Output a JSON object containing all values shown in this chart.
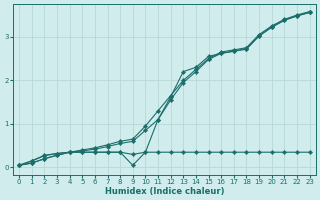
{
  "xlabel": "Humidex (Indice chaleur)",
  "bg_color": "#d0ecec",
  "grid_color": "#b8d8d8",
  "line_color": "#1a6e6a",
  "xlim": [
    -0.5,
    23.5
  ],
  "ylim": [
    -0.18,
    3.75
  ],
  "xticks": [
    0,
    1,
    2,
    3,
    4,
    5,
    6,
    7,
    8,
    9,
    10,
    11,
    12,
    13,
    14,
    15,
    16,
    17,
    18,
    19,
    20,
    21,
    22,
    23
  ],
  "yticks": [
    0,
    1,
    2,
    3
  ],
  "series": [
    {
      "x": [
        0,
        1,
        2,
        3,
        4,
        5,
        6,
        7,
        8,
        9,
        10,
        11,
        12,
        13,
        14,
        15,
        16,
        17,
        18,
        19,
        20,
        21,
        22,
        23
      ],
      "y": [
        0.05,
        0.1,
        0.2,
        0.28,
        0.35,
        0.4,
        0.45,
        0.52,
        0.6,
        0.65,
        0.95,
        1.3,
        1.65,
        2.0,
        2.25,
        2.5,
        2.65,
        2.7,
        2.75,
        3.05,
        3.25,
        3.4,
        3.5,
        3.58
      ]
    },
    {
      "x": [
        0,
        1,
        2,
        3,
        4,
        5,
        6,
        7,
        8,
        9,
        10,
        11,
        12,
        13,
        14,
        15,
        16,
        17,
        18,
        19,
        20,
        21,
        22,
        23
      ],
      "y": [
        0.05,
        0.1,
        0.2,
        0.28,
        0.35,
        0.38,
        0.42,
        0.48,
        0.55,
        0.6,
        0.85,
        1.1,
        1.55,
        1.95,
        2.2,
        2.48,
        2.62,
        2.67,
        2.72,
        3.02,
        3.22,
        3.38,
        3.48,
        3.56
      ]
    },
    {
      "x": [
        0,
        1,
        2,
        3,
        4,
        5,
        6,
        7,
        8,
        9,
        10,
        11,
        12,
        13,
        14,
        15,
        16,
        17,
        18,
        19,
        20,
        21,
        22,
        23
      ],
      "y": [
        0.05,
        0.15,
        0.28,
        0.32,
        0.35,
        0.35,
        0.35,
        0.35,
        0.35,
        0.05,
        0.35,
        1.1,
        1.62,
        2.2,
        2.3,
        2.55,
        2.62,
        2.67,
        2.72,
        3.02,
        3.22,
        3.38,
        3.48,
        3.56
      ]
    },
    {
      "x": [
        0,
        1,
        2,
        3,
        4,
        5,
        6,
        7,
        8,
        9,
        10,
        11,
        12,
        13,
        14,
        15,
        16,
        17,
        18,
        19,
        20,
        21,
        22,
        23
      ],
      "y": [
        0.05,
        0.15,
        0.27,
        0.32,
        0.35,
        0.35,
        0.35,
        0.35,
        0.35,
        0.3,
        0.35,
        0.35,
        0.35,
        0.35,
        0.35,
        0.35,
        0.35,
        0.35,
        0.35,
        0.35,
        0.35,
        0.35,
        0.35,
        0.35
      ]
    }
  ]
}
